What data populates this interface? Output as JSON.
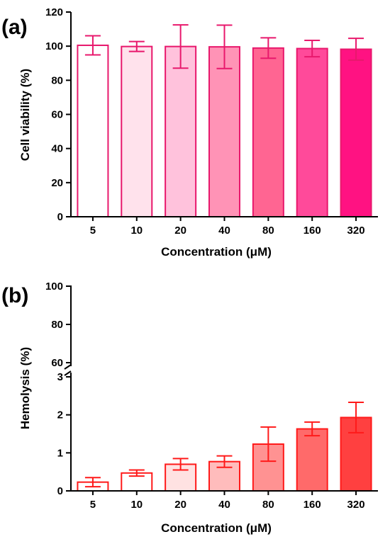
{
  "chart_data": [
    {
      "type": "bar",
      "panel_label": "(a)",
      "categories": [
        "5",
        "10",
        "20",
        "40",
        "80",
        "160",
        "320"
      ],
      "values": [
        100.5,
        99.8,
        99.8,
        99.6,
        98.9,
        98.6,
        98.2
      ],
      "error": [
        5.6,
        2.9,
        12.7,
        12.7,
        6.0,
        4.8,
        6.4
      ],
      "xlabel": "Concentration (μM)",
      "ylabel": "Cell viability (%)",
      "ylim": [
        0,
        120
      ],
      "yticks": [
        "0",
        "20",
        "40",
        "60",
        "80",
        "100",
        "120"
      ],
      "stroke_color": "#e8186c",
      "fill_colors": [
        "#ffffff",
        "#ffe2ec",
        "#ffc2dc",
        "#ff93b6",
        "#ff6592",
        "#ff4a9a",
        "#ff1282"
      ],
      "grid": false
    },
    {
      "type": "bar",
      "panel_label": "(b)",
      "categories": [
        "5",
        "10",
        "20",
        "40",
        "80",
        "160",
        "320"
      ],
      "values": [
        0.23,
        0.47,
        0.7,
        0.77,
        1.23,
        1.63,
        1.93
      ],
      "error": [
        0.12,
        0.08,
        0.15,
        0.15,
        0.45,
        0.18,
        0.4
      ],
      "xlabel": "Concentration (μM)",
      "ylabel": "Hemolysis (%)",
      "axis_break": true,
      "ylim_lower": [
        0,
        3
      ],
      "yticks_lower": [
        "0",
        "1",
        "2",
        "3"
      ],
      "ylim_upper": [
        60,
        100
      ],
      "yticks_upper": [
        "60",
        "80",
        "100"
      ],
      "stroke_color": "#ff1a1a",
      "fill_colors": [
        "#ffffff",
        "#ffffff",
        "#ffe2e2",
        "#ffbcbc",
        "#ff9292",
        "#ff6a6a",
        "#ff4040"
      ],
      "grid": false
    }
  ]
}
